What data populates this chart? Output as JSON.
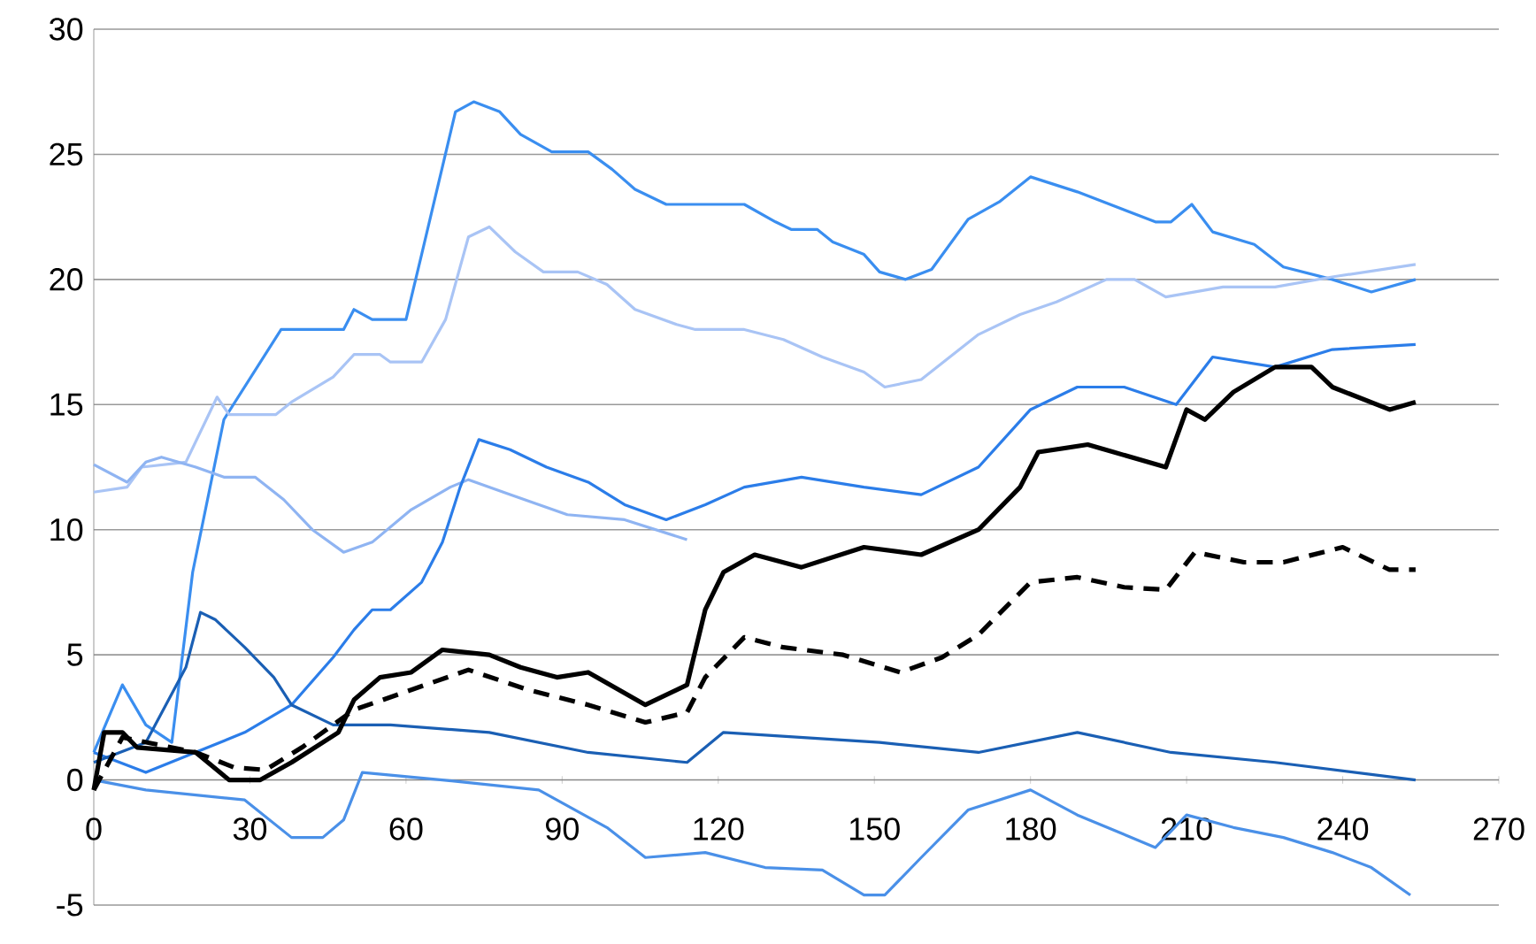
{
  "chart_data": {
    "type": "line",
    "xlim": [
      0,
      270
    ],
    "ylim": [
      -5,
      30
    ],
    "xticks": [
      0,
      30,
      60,
      90,
      120,
      150,
      180,
      210,
      240,
      270
    ],
    "yticks": [
      -5,
      0,
      5,
      10,
      15,
      20,
      25,
      30
    ],
    "grid": "y",
    "line_style": "solid",
    "series": [
      {
        "color": "#3a8ef0",
        "x": [
          0,
          5.5,
          10,
          15,
          19,
          25,
          36,
          48,
          50,
          53.5,
          60,
          63,
          69.5,
          73,
          78,
          82,
          88,
          95,
          99.6,
          104,
          110,
          125,
          131,
          134,
          139,
          142,
          148,
          151,
          156,
          161,
          168,
          174,
          180,
          189,
          204,
          207,
          211,
          215,
          223,
          228.6,
          238,
          245.5,
          254
        ],
        "values": [
          1.1,
          3.8,
          2.2,
          1.5,
          8.3,
          14.4,
          18,
          18,
          18.8,
          18.4,
          18.4,
          21,
          26.7,
          27.1,
          26.7,
          25.8,
          25.1,
          25.1,
          24.4,
          23.6,
          23,
          23,
          22.3,
          22,
          22,
          21.5,
          21,
          20.3,
          20,
          20.4,
          22.4,
          23.1,
          24.1,
          23.5,
          22.3,
          22.3,
          23,
          21.9,
          21.4,
          20.5,
          20,
          19.5,
          20
        ]
      },
      {
        "color": "#a9c4f5",
        "x": [
          0,
          6.4,
          9.2,
          17.7,
          23.7,
          26,
          35,
          38,
          46,
          50,
          55,
          57,
          63,
          67.6,
          72,
          76,
          81,
          86.4,
          93,
          98.6,
          104,
          112,
          115.6,
          125,
          132.5,
          140,
          148,
          152,
          159,
          170,
          178,
          185,
          194.6,
          200,
          206,
          217,
          227,
          238,
          254
        ],
        "values": [
          11.5,
          11.7,
          12.5,
          12.7,
          15.3,
          14.6,
          14.6,
          15.1,
          16.1,
          17,
          17,
          16.7,
          16.7,
          18.4,
          21.7,
          22.1,
          21.1,
          20.3,
          20.3,
          19.8,
          18.8,
          18.2,
          18,
          18,
          17.6,
          16.9,
          16.3,
          15.7,
          16,
          17.8,
          18.6,
          19.1,
          20,
          20,
          19.3,
          19.7,
          19.7,
          20.1,
          20.6
        ]
      },
      {
        "color": "#8fb4f2",
        "x": [
          0,
          6.4,
          10,
          13,
          19.6,
          25,
          31,
          36.5,
          42,
          48,
          53.5,
          61,
          68.5,
          72,
          80,
          91,
          102,
          114
        ],
        "values": [
          12.6,
          11.9,
          12.7,
          12.9,
          12.5,
          12.1,
          12.1,
          11.2,
          10,
          9.1,
          9.5,
          10.8,
          11.7,
          12,
          11.4,
          10.6,
          10.4,
          9.6
        ]
      },
      {
        "color": "#2b7de9",
        "x": [
          0,
          10,
          29,
          38,
          46,
          50,
          53.5,
          57,
          63,
          67,
          70.4,
          74,
          80,
          87,
          95,
          102,
          110,
          117.5,
          125,
          136,
          148,
          159,
          170,
          180,
          189,
          198,
          208,
          215,
          227,
          238,
          254
        ],
        "values": [
          1.1,
          0.3,
          1.9,
          3,
          4.9,
          6,
          6.8,
          6.8,
          7.9,
          9.5,
          11.7,
          13.6,
          13.2,
          12.5,
          11.9,
          11,
          10.4,
          11,
          11.7,
          12.1,
          11.7,
          11.4,
          12.5,
          14.8,
          15.7,
          15.7,
          15,
          16.9,
          16.5,
          17.2,
          17.4
        ]
      },
      {
        "color": "#1a5fb4",
        "x": [
          0,
          10,
          17.7,
          20.5,
          23.4,
          29,
          34.6,
          38,
          46,
          57,
          76,
          95,
          114,
          121,
          151,
          170,
          189,
          207,
          227,
          254
        ],
        "values": [
          0.7,
          1.5,
          4.5,
          6.7,
          6.4,
          5.3,
          4.1,
          3,
          2.2,
          2.2,
          1.9,
          1.1,
          0.7,
          1.9,
          1.5,
          1.1,
          1.9,
          1.1,
          0.7,
          0
        ]
      },
      {
        "color": "#4a90e8",
        "x": [
          0,
          10,
          29,
          38,
          44,
          48,
          51.6,
          67,
          85.5,
          98.6,
          106,
          117.5,
          129,
          140,
          148,
          152,
          159,
          168,
          180,
          189,
          204,
          210,
          219,
          228.6,
          238,
          245.5,
          253
        ],
        "values": [
          0,
          -0.4,
          -0.8,
          -2.3,
          -2.3,
          -1.6,
          0.3,
          0,
          -0.4,
          -1.9,
          -3.1,
          -2.9,
          -3.5,
          -3.6,
          -4.6,
          -4.6,
          -3.1,
          -1.2,
          -0.4,
          -1.4,
          -2.7,
          -1.4,
          -1.9,
          -2.3,
          -2.9,
          -3.5,
          -4.6
        ]
      },
      {
        "color": "#000000",
        "x": [
          0,
          2,
          5.5,
          8.3,
          19.6,
          26,
          32,
          38,
          47,
          50,
          55,
          61,
          67,
          76,
          82,
          89,
          95,
          106,
          114,
          117.5,
          121,
          127,
          136,
          148,
          159,
          170,
          178,
          181.5,
          191,
          206,
          210,
          213.5,
          219,
          227,
          234,
          238,
          249,
          254
        ],
        "values": [
          -0.4,
          1.9,
          1.9,
          1.3,
          1.1,
          0,
          0,
          0.7,
          1.9,
          3.2,
          4.1,
          4.3,
          5.2,
          5,
          4.5,
          4.1,
          4.3,
          3,
          3.8,
          6.8,
          8.3,
          9,
          8.5,
          9.3,
          9,
          10,
          11.7,
          13.1,
          13.4,
          12.5,
          14.8,
          14.4,
          15.5,
          16.5,
          16.5,
          15.7,
          14.8,
          15.1
        ]
      },
      {
        "color": "#000000",
        "line_style": "dashed",
        "x": [
          0,
          5.5,
          19.6,
          27,
          33,
          40,
          50,
          61,
          72,
          83.5,
          95,
          106,
          114,
          117.5,
          125,
          132.5,
          144,
          155,
          163,
          170,
          180,
          189,
          198,
          206,
          211.6,
          221,
          228.6,
          240,
          249,
          254
        ],
        "values": [
          -0.4,
          1.7,
          1.1,
          0.5,
          0.4,
          1.3,
          2.8,
          3.6,
          4.4,
          3.6,
          3,
          2.3,
          2.7,
          4.1,
          5.7,
          5.3,
          5,
          4.3,
          4.9,
          5.8,
          7.9,
          8.1,
          7.7,
          7.6,
          9.1,
          8.7,
          8.7,
          9.3,
          8.4,
          8.4
        ]
      }
    ]
  }
}
